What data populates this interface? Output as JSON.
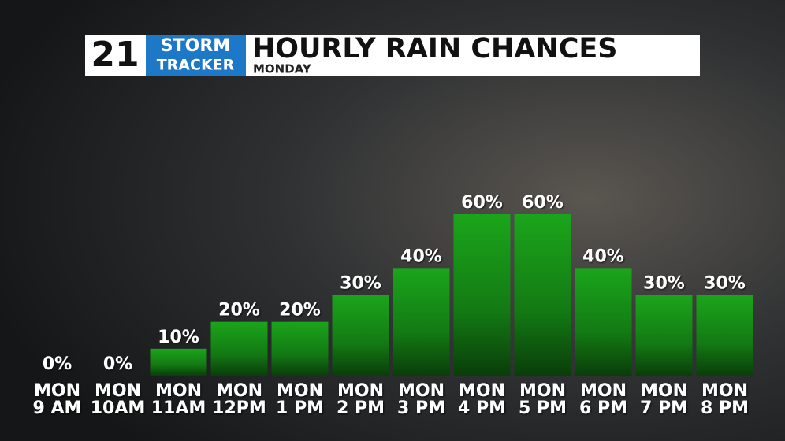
{
  "logo": {
    "number": "21",
    "line1": "STORM",
    "line2": "TRACKER"
  },
  "chart_data": {
    "type": "bar",
    "title": "HOURLY RAIN CHANCES",
    "subtitle": "MONDAY",
    "day_labels": [
      "MON",
      "MON",
      "MON",
      "MON",
      "MON",
      "MON",
      "MON",
      "MON",
      "MON",
      "MON",
      "MON",
      "MON"
    ],
    "categories": [
      "9 AM",
      "10AM",
      "11AM",
      "12PM",
      "1 PM",
      "2 PM",
      "3 PM",
      "4 PM",
      "5 PM",
      "6 PM",
      "7 PM",
      "8 PM"
    ],
    "values": [
      0,
      0,
      10,
      20,
      20,
      30,
      40,
      60,
      60,
      40,
      30,
      30
    ],
    "value_labels": [
      "0%",
      "0%",
      "10%",
      "20%",
      "20%",
      "30%",
      "40%",
      "60%",
      "60%",
      "40%",
      "30%",
      "30%"
    ],
    "color": "#1ba51b",
    "ylim": [
      0,
      60
    ]
  }
}
